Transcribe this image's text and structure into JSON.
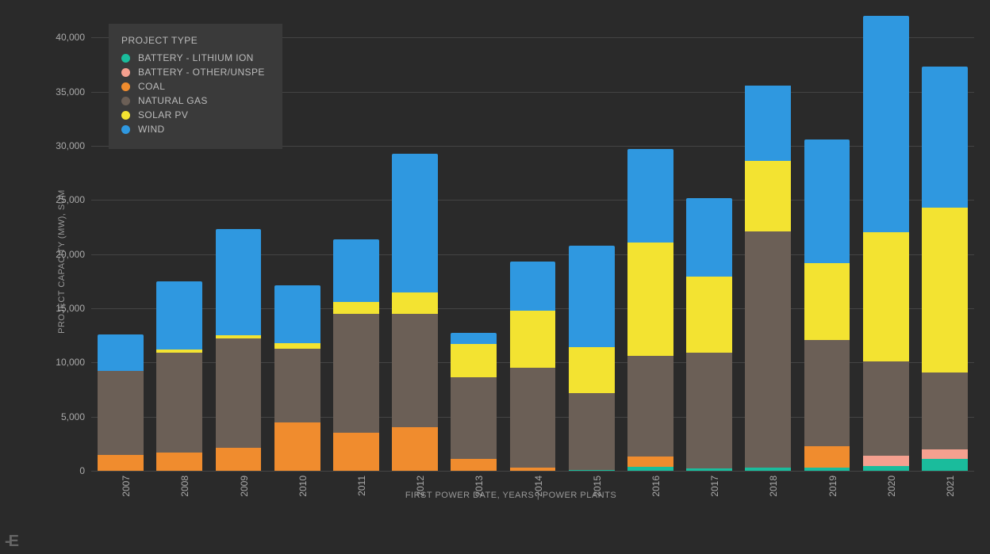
{
  "chart": {
    "type": "stacked-bar",
    "background_color": "#2a2a2a",
    "plot_background": "#2a2a2a",
    "grid_color": "#444444",
    "axis_label_color": "#aaaaaa",
    "axis_title_color": "#999999",
    "x_axis_title": "FIRST POWER DATE, YEARS | POWER PLANTS",
    "y_axis_title": "PROJECT CAPACITY (MW), SUM",
    "title_fontsize": 11,
    "tick_fontsize": 12,
    "ylim": [
      0,
      42000
    ],
    "ytick_step": 5000,
    "y_ticks": [
      0,
      5000,
      10000,
      15000,
      20000,
      25000,
      30000,
      35000,
      40000
    ],
    "y_tick_labels": [
      "0",
      "5,000",
      "10,000",
      "15,000",
      "20,000",
      "25,000",
      "30,000",
      "35,000",
      "40,000"
    ],
    "bar_width": 0.78,
    "categories": [
      "2007",
      "2008",
      "2009",
      "2010",
      "2011",
      "2012",
      "2013",
      "2014",
      "2015",
      "2016",
      "2017",
      "2018",
      "2019",
      "2020",
      "2021"
    ],
    "series": [
      {
        "key": "battery_li",
        "label": "BATTERY - LITHIUM ION",
        "color": "#1abc9c"
      },
      {
        "key": "battery_other",
        "label": "BATTERY - OTHER/UNSPE",
        "color": "#f5a08f"
      },
      {
        "key": "coal",
        "label": "COAL",
        "color": "#f08c2e"
      },
      {
        "key": "natural_gas",
        "label": "NATURAL GAS",
        "color": "#6b5f56"
      },
      {
        "key": "solar_pv",
        "label": "SOLAR PV",
        "color": "#f3e331"
      },
      {
        "key": "wind",
        "label": "WIND",
        "color": "#2f98e0"
      }
    ],
    "data": {
      "battery_li": [
        0,
        0,
        0,
        0,
        0,
        0,
        0,
        0,
        100,
        400,
        200,
        300,
        300,
        450,
        1100
      ],
      "battery_other": [
        0,
        0,
        0,
        0,
        0,
        0,
        0,
        0,
        0,
        0,
        0,
        0,
        0,
        950,
        900
      ],
      "coal": [
        1500,
        1700,
        2100,
        4500,
        3500,
        4000,
        1100,
        300,
        0,
        900,
        0,
        0,
        2000,
        0,
        0
      ],
      "natural_gas": [
        7700,
        9200,
        10100,
        6800,
        11000,
        10500,
        7500,
        9200,
        7100,
        9300,
        10700,
        21800,
        9800,
        8700,
        7100
      ],
      "solar_pv": [
        0,
        300,
        300,
        500,
        1100,
        2000,
        3100,
        5300,
        4200,
        10500,
        7000,
        6500,
        7100,
        11900,
        15200
      ],
      "wind": [
        3400,
        6300,
        9800,
        5300,
        5800,
        12800,
        1000,
        4500,
        9400,
        8600,
        7300,
        7000,
        11400,
        20000,
        13000
      ]
    },
    "legend": {
      "title": "PROJECT TYPE",
      "background": "#3a3a3a",
      "text_color": "#bbbbbb",
      "fontsize": 12,
      "position": "top-left"
    }
  }
}
